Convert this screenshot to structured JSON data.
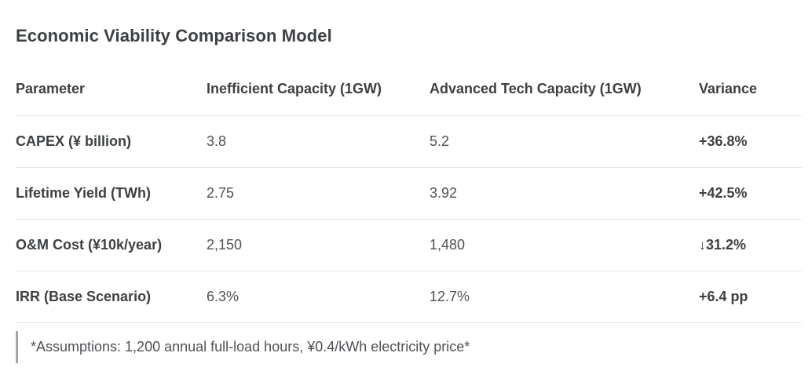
{
  "title": "Economic Viability Comparison Model",
  "table": {
    "headers": [
      "Parameter",
      "Inefficient Capacity (1GW)",
      "Advanced Tech Capacity (1GW)",
      "Variance"
    ],
    "rows": [
      {
        "parameter": "CAPEX (¥ billion)",
        "inefficient": "3.8",
        "advanced": "5.2",
        "variance": "+36.8%"
      },
      {
        "parameter": "Lifetime Yield (TWh)",
        "inefficient": "2.75",
        "advanced": "3.92",
        "variance": "+42.5%"
      },
      {
        "parameter": "O&M Cost (¥10k/year)",
        "inefficient": "2,150",
        "advanced": "1,480",
        "variance": "↓31.2%"
      },
      {
        "parameter": "IRR (Base Scenario)",
        "inefficient": "6.3%",
        "advanced": "12.7%",
        "variance": "+6.4 pp"
      }
    ]
  },
  "footnote": "*Assumptions: 1,200 annual full-load hours, ¥0.4/kWh electricity price*",
  "colors": {
    "text_dark": "#3d4043",
    "text_regular": "#4e5155",
    "divider": "#e5e6e8",
    "quote_bar": "#a2a6ab",
    "background": "#ffffff"
  }
}
